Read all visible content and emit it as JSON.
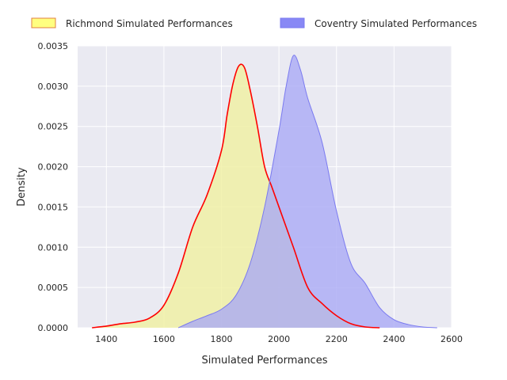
{
  "chart_data": {
    "type": "area",
    "title": "",
    "xlabel": "Simulated Performances",
    "ylabel": "Density",
    "xlim": [
      1300,
      2600
    ],
    "ylim": [
      0,
      0.0035
    ],
    "xticks": [
      1400,
      1600,
      1800,
      2000,
      2200,
      2400,
      2600
    ],
    "yticks": [
      0.0,
      0.0005,
      0.001,
      0.0015,
      0.002,
      0.0025,
      0.003,
      0.0035
    ],
    "xtick_labels": [
      "1400",
      "1600",
      "1800",
      "2000",
      "2200",
      "2400",
      "2600"
    ],
    "ytick_labels": [
      "0.0000",
      "0.0005",
      "0.0010",
      "0.0015",
      "0.0020",
      "0.0025",
      "0.0030",
      "0.0035"
    ],
    "grid": true,
    "legend_position": "top-outside",
    "series": [
      {
        "name": "Richmond Simulated Performances",
        "fill_color": "#f0f0a0",
        "line_color": "#ff0000",
        "legend_fill": "#ffff80",
        "legend_edge": "#e08040",
        "x": [
          1350,
          1400,
          1450,
          1500,
          1550,
          1600,
          1650,
          1700,
          1750,
          1800,
          1820,
          1840,
          1860,
          1880,
          1900,
          1925,
          1950,
          1975,
          2000,
          2050,
          2100,
          2150,
          2200,
          2250,
          2300,
          2350
        ],
        "y": [
          0.0,
          2e-05,
          5e-05,
          7e-05,
          0.00012,
          0.00028,
          0.00068,
          0.00125,
          0.00165,
          0.0022,
          0.00265,
          0.00303,
          0.00325,
          0.00323,
          0.00295,
          0.0025,
          0.002,
          0.00175,
          0.0015,
          0.001,
          0.0005,
          0.0003,
          0.00015,
          5e-05,
          1e-05,
          0.0
        ]
      },
      {
        "name": "Coventry Simulated Performances",
        "fill_color": "#aaaaf5",
        "line_color": "#7a7af0",
        "legend_fill": "#8888f5",
        "legend_edge": "#7a7af0",
        "x": [
          1650,
          1700,
          1750,
          1800,
          1850,
          1900,
          1950,
          2000,
          2025,
          2050,
          2075,
          2100,
          2150,
          2200,
          2250,
          2300,
          2350,
          2400,
          2450,
          2500,
          2550
        ],
        "y": [
          0.0,
          8e-05,
          0.00015,
          0.00023,
          0.0004,
          0.0008,
          0.0015,
          0.00245,
          0.003,
          0.00338,
          0.0032,
          0.00285,
          0.0023,
          0.00145,
          0.0008,
          0.00055,
          0.00025,
          0.0001,
          4e-05,
          1e-05,
          0.0
        ]
      }
    ]
  }
}
